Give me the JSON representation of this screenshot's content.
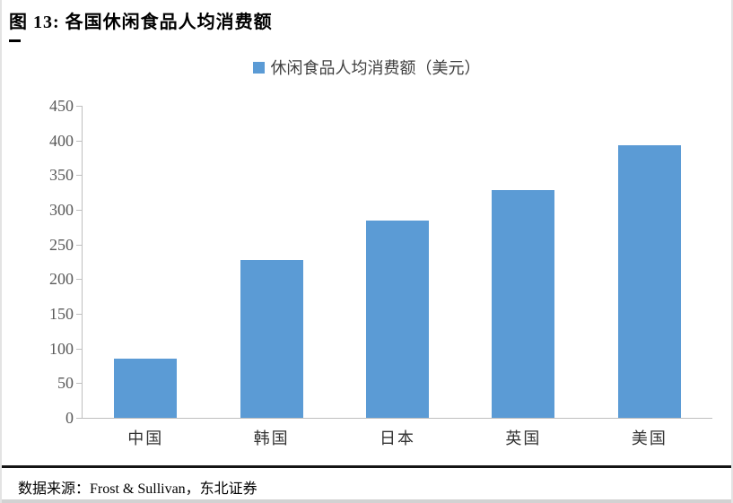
{
  "figure": {
    "title": "图  13:  各国休闲食品人均消费额",
    "underscore_mark": "_"
  },
  "legend": {
    "label": "休闲食品人均消费额（美元）"
  },
  "chart_data": {
    "type": "bar",
    "title": "各国休闲食品人均消费额",
    "legend": [
      "休闲食品人均消费额（美元）"
    ],
    "categories": [
      "中国",
      "韩国",
      "日本",
      "英国",
      "美国"
    ],
    "values": [
      85,
      228,
      285,
      328,
      393
    ],
    "xlabel": "",
    "ylabel": "",
    "ylim": [
      0,
      450
    ],
    "ytick_step": 50,
    "yticks": [
      0,
      50,
      100,
      150,
      200,
      250,
      300,
      350,
      400,
      450
    ],
    "grid": false,
    "legend_position": "top-center",
    "bar_color": "#5B9BD5",
    "axis_color": "#BFBFBF",
    "tick_label_color": "#595959"
  },
  "footer": {
    "source": "数据来源：Frost & Sullivan，东北证券"
  }
}
